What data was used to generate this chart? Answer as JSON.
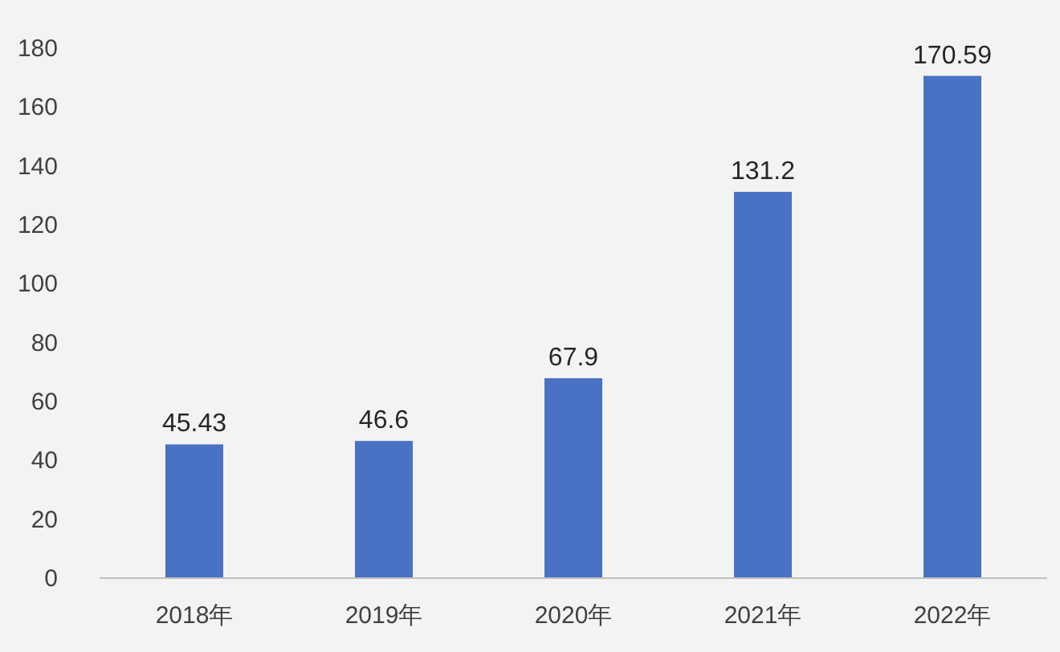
{
  "chart_data": {
    "type": "bar",
    "categories": [
      "2018年",
      "2019年",
      "2020年",
      "2021年",
      "2022年"
    ],
    "values": [
      45.43,
      46.6,
      67.9,
      131.2,
      170.59
    ],
    "color": "#4a72c4",
    "ylim": [
      0,
      180
    ],
    "yticks": [
      0,
      20,
      40,
      60,
      80,
      100,
      120,
      140,
      160,
      180
    ],
    "data_labels": true
  }
}
